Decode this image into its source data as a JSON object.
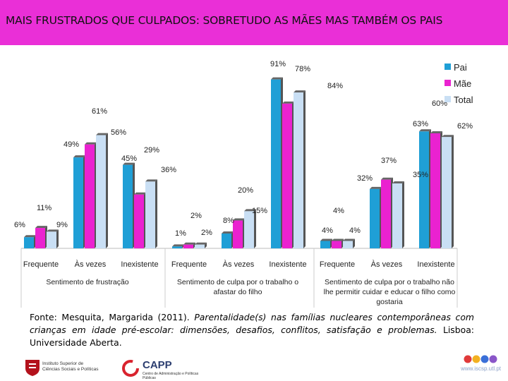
{
  "title": "MAIS FRUSTRADOS QUE CULPADOS: SOBRETUDO AS MÃES MAS TAMBÉM OS PAIS",
  "colors": {
    "header": "#ea2fd7",
    "pai": "#1f9fd6",
    "mae": "#ea22d0",
    "total": "#c9dff4"
  },
  "chart_data": {
    "type": "bar",
    "title": "",
    "ylabel": "",
    "ylim": [
      0,
      100
    ],
    "legend": [
      "Pai",
      "Mãe",
      "Total"
    ],
    "legend_position": "top-right",
    "groups": [
      {
        "name": "Sentimento de frustração",
        "categories": [
          "Frequente",
          "Às vezes",
          "Inexistente"
        ]
      },
      {
        "name": "Sentimento de culpa por o trabalho o afastar do filho",
        "categories": [
          "Frequente",
          "Às vezes",
          "Inexistente"
        ]
      },
      {
        "name": "Sentimento de culpa por o trabalho não lhe permitir cuidar e educar o filho como gostaria",
        "categories": [
          "Frequente",
          "Às vezes",
          "Inexistente"
        ]
      }
    ],
    "categories": [
      "Frequente",
      "Às vezes",
      "Inexistente",
      "Frequente",
      "Às vezes",
      "Inexistente",
      "Frequente",
      "Às vezes",
      "Inexistente"
    ],
    "series": [
      {
        "name": "Pai",
        "values": [
          6,
          49,
          45,
          1,
          8,
          91,
          4,
          32,
          63
        ]
      },
      {
        "name": "Mãe",
        "values": [
          11,
          56,
          29,
          2,
          15,
          78,
          4,
          37,
          62
        ]
      },
      {
        "name": "Total",
        "values": [
          9,
          61,
          36,
          2,
          20,
          84,
          4,
          35,
          60
        ]
      }
    ],
    "value_labels": [
      [
        "6%",
        "11%",
        "9%"
      ],
      [
        "49%",
        "56%",
        "61%"
      ],
      [
        "45%",
        "29%",
        "36%"
      ],
      [
        "1%",
        "2%",
        "2%"
      ],
      [
        "8%",
        "15%",
        "20%"
      ],
      [
        "91%",
        "78%",
        "84%"
      ],
      [
        "4%",
        "4%",
        "4%"
      ],
      [
        "32%",
        "37%",
        "35%"
      ],
      [
        "63%",
        "62%",
        "60%"
      ]
    ]
  },
  "source": {
    "prefix": "Fonte: Mesquita, Margarida (2011). ",
    "title_italic": "Parentalidade(s) nas famílias nucleares contemporâneas com crianças em idade pré-escolar: dimensões, desafios, conflitos, satisfação e problemas.",
    "suffix": " Lisboa: Universidade Aberta."
  },
  "footer": {
    "logo1": "Instituto Superior de Ciências Sociais e Políticas",
    "logo2_title": "CAPP",
    "logo2_sub": "Centro de Administração e Políticas Públicas",
    "url": "www.iscsp.utl.pt"
  }
}
